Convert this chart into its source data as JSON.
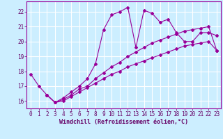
{
  "title": "",
  "xlabel": "Windchill (Refroidissement éolien,°C)",
  "ylabel": "",
  "bg_color": "#cceeff",
  "line_color": "#990099",
  "grid_color": "#ffffff",
  "xlim": [
    -0.5,
    23.5
  ],
  "ylim": [
    15.5,
    22.7
  ],
  "yticks": [
    16,
    17,
    18,
    19,
    20,
    21,
    22
  ],
  "xticks": [
    0,
    1,
    2,
    3,
    4,
    5,
    6,
    7,
    8,
    9,
    10,
    11,
    12,
    13,
    14,
    15,
    16,
    17,
    18,
    19,
    20,
    21,
    22,
    23
  ],
  "line1_x": [
    0,
    1,
    2,
    3,
    4,
    5,
    6,
    7,
    8,
    9,
    10,
    11,
    12,
    13,
    14,
    15,
    16,
    17,
    18,
    19,
    20,
    21,
    22,
    23
  ],
  "line1_y": [
    17.8,
    17.0,
    16.4,
    15.9,
    16.2,
    16.6,
    17.0,
    17.5,
    18.5,
    20.8,
    21.8,
    22.0,
    22.3,
    19.6,
    22.1,
    21.9,
    21.3,
    21.5,
    20.6,
    20.0,
    20.0,
    20.6,
    20.6,
    20.4
  ],
  "line2_x": [
    2,
    3,
    4,
    5,
    6,
    7,
    8,
    9,
    10,
    11,
    12,
    13,
    14,
    15,
    16,
    17,
    18,
    19,
    20,
    21,
    22,
    23
  ],
  "line2_y": [
    16.4,
    15.9,
    16.1,
    16.4,
    16.8,
    17.0,
    17.5,
    17.9,
    18.3,
    18.6,
    19.0,
    19.3,
    19.6,
    19.9,
    20.1,
    20.3,
    20.5,
    20.7,
    20.8,
    20.9,
    21.0,
    19.4
  ],
  "line3_x": [
    2,
    3,
    4,
    5,
    6,
    7,
    8,
    9,
    10,
    11,
    12,
    13,
    14,
    15,
    16,
    17,
    18,
    19,
    20,
    21,
    22,
    23
  ],
  "line3_y": [
    16.4,
    15.9,
    16.0,
    16.3,
    16.6,
    16.9,
    17.2,
    17.5,
    17.8,
    18.0,
    18.3,
    18.5,
    18.7,
    18.9,
    19.1,
    19.3,
    19.5,
    19.7,
    19.8,
    19.9,
    20.0,
    19.4
  ],
  "marker": "D",
  "markersize": 2,
  "linewidth": 0.8,
  "tick_fontsize": 5.5,
  "xlabel_fontsize": 6.0
}
